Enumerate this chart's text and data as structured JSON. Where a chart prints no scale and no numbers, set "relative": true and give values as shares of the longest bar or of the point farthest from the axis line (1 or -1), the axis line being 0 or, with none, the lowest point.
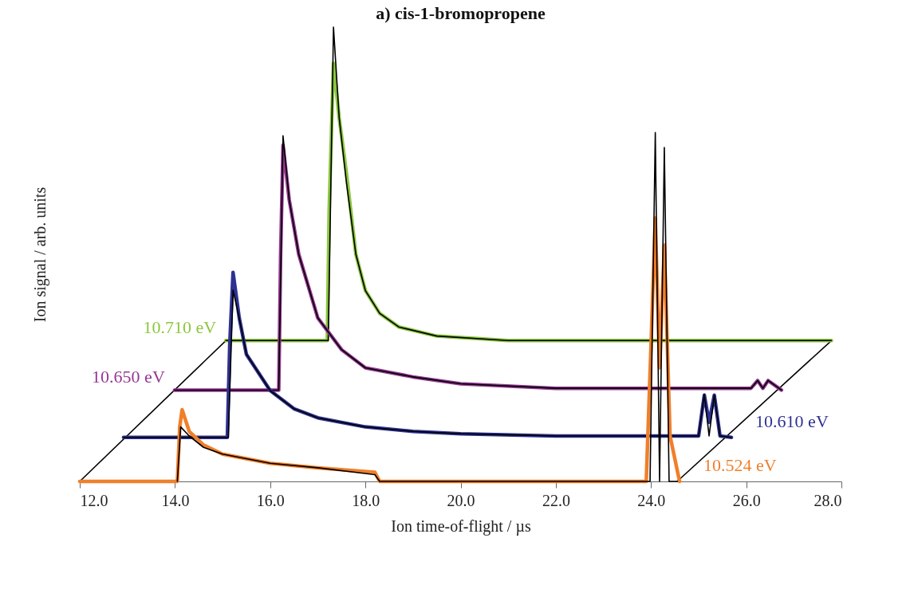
{
  "chart_data": {
    "type": "line",
    "title": "a) cis-1-bromopropene",
    "xlabel": "Ion time-of-flight / µs",
    "ylabel": "Ion signal / arb. units",
    "relative": true,
    "xlim": [
      12,
      28
    ],
    "xticks": [
      {
        "value": 12,
        "label": "12.0"
      },
      {
        "value": 14,
        "label": "14.0"
      },
      {
        "value": 16,
        "label": "16.0"
      },
      {
        "value": 18,
        "label": "18.0"
      },
      {
        "value": 20,
        "label": "20.0"
      },
      {
        "value": 22,
        "label": "22.0"
      },
      {
        "value": 24,
        "label": "24.0"
      },
      {
        "value": 26,
        "label": "26.0"
      },
      {
        "value": 28,
        "label": "28.0"
      }
    ],
    "series": [
      {
        "type": "line",
        "color": "#000000",
        "x": [
          12,
          15.07
        ],
        "values": [
          0,
          0.31
        ]
      },
      {
        "type": "line",
        "color": "#000000",
        "x": [
          24.55,
          27.79
        ],
        "values": [
          0,
          0.31
        ]
      },
      {
        "name": "10.710 eV",
        "color": "#8cc63f",
        "x": [
          15.07,
          17.2,
          17.24,
          17.33,
          17.45,
          17.6,
          17.8,
          18,
          18.3,
          18.7,
          19.5,
          21,
          27.79
        ],
        "values": [
          0.31,
          0.31,
          0.6,
          0.92,
          0.8,
          0.68,
          0.5,
          0.42,
          0.37,
          0.34,
          0.32,
          0.31,
          0.31
        ]
      },
      {
        "type": "line",
        "color": "#000000",
        "x": [
          15.07,
          17.22,
          17.33,
          17.45,
          17.6,
          17.8,
          18,
          18.3,
          18.7,
          19.5,
          21,
          27.79
        ],
        "values": [
          0.31,
          0.31,
          1.0,
          0.8,
          0.66,
          0.5,
          0.42,
          0.37,
          0.34,
          0.32,
          0.31,
          0.31
        ]
      },
      {
        "name": "10.650 eV",
        "color": "#953793",
        "x": [
          13.99,
          16.18,
          16.22,
          16.27,
          16.4,
          16.6,
          17,
          17.5,
          18,
          19,
          20,
          22,
          26.1,
          26.24,
          26.35,
          26.46,
          26.74
        ],
        "values": [
          0.201,
          0.201,
          0.5,
          0.74,
          0.62,
          0.5,
          0.36,
          0.29,
          0.25,
          0.23,
          0.215,
          0.205,
          0.205,
          0.222,
          0.205,
          0.222,
          0.201
        ]
      },
      {
        "type": "line",
        "color": "#000000",
        "x": [
          13.99,
          16.18,
          16.27,
          16.4,
          16.6,
          17,
          17.5,
          18,
          19,
          20,
          22,
          26.1,
          26.24,
          26.35,
          26.46,
          26.74
        ],
        "values": [
          0.201,
          0.201,
          0.761,
          0.62,
          0.5,
          0.36,
          0.29,
          0.25,
          0.23,
          0.215,
          0.205,
          0.205,
          0.222,
          0.205,
          0.222,
          0.201
        ]
      },
      {
        "name": "10.610 eV",
        "color": "#2e3192",
        "x": [
          12.92,
          15.1,
          15.15,
          15.22,
          15.35,
          15.5,
          16,
          16.5,
          17,
          18,
          19,
          20,
          22,
          25,
          25.12,
          25.22,
          25.33,
          25.45,
          25.69
        ],
        "values": [
          0.097,
          0.097,
          0.3,
          0.46,
          0.36,
          0.28,
          0.2,
          0.16,
          0.14,
          0.12,
          0.11,
          0.105,
          0.1,
          0.1,
          0.19,
          0.13,
          0.19,
          0.1,
          0.097
        ]
      },
      {
        "type": "line",
        "color": "#000000",
        "x": [
          12.92,
          15.12,
          15.22,
          15.35,
          15.5,
          16,
          16.5,
          17,
          18,
          19,
          20,
          22,
          25,
          25.12,
          25.22,
          25.33,
          25.45,
          25.69
        ],
        "values": [
          0.097,
          0.097,
          0.421,
          0.36,
          0.28,
          0.2,
          0.16,
          0.14,
          0.12,
          0.11,
          0.105,
          0.1,
          0.1,
          0.192,
          0.1,
          0.19,
          0.1,
          0.097
        ]
      },
      {
        "name": "10.524 eV",
        "color": "#f07f2a",
        "x": [
          12,
          14.05,
          14.1,
          14.15,
          14.3,
          14.6,
          15,
          16,
          17,
          18.2,
          18.3,
          23.9,
          24.0,
          24.09,
          24.18,
          24.28,
          24.4,
          24.6
        ],
        "values": [
          0,
          0,
          0.12,
          0.158,
          0.11,
          0.08,
          0.06,
          0.04,
          0.03,
          0.02,
          0,
          0,
          0.3,
          0.58,
          0.25,
          0.52,
          0.1,
          0
        ]
      },
      {
        "type": "line",
        "color": "#000000",
        "x": [
          14.05,
          14.12,
          14.3,
          14.6,
          15,
          16,
          17,
          18.2,
          18.3,
          23.98,
          24.09,
          24.18,
          24.28,
          24.38,
          24.55
        ],
        "values": [
          0,
          0.12,
          0.1,
          0.075,
          0.06,
          0.04,
          0.03,
          0.015,
          0,
          0,
          0.768,
          0,
          0.735,
          0,
          0
        ]
      }
    ]
  }
}
